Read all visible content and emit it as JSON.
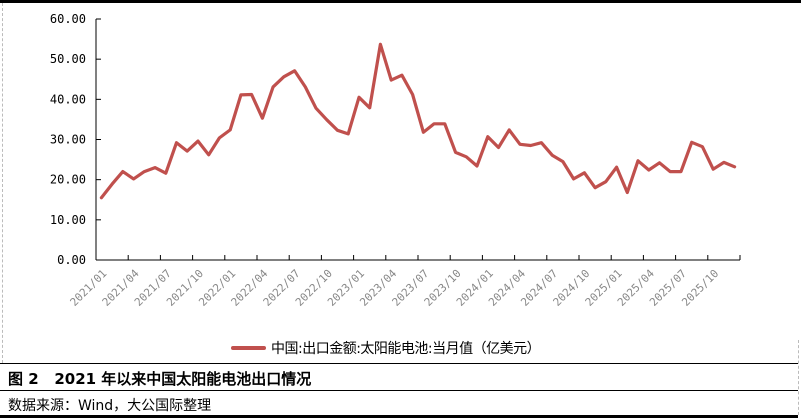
{
  "figure": {
    "title": "图 2   2021 年以来中国太阳能电池出口情况",
    "source": "数据来源：Wind，大公国际整理"
  },
  "colors": {
    "series": "#C0504D",
    "axis": "#000000",
    "tick_label_x": "#888888"
  },
  "chart_data": {
    "type": "line",
    "title": "2021 年以来中国太阳能电池出口情况",
    "xlabel": "",
    "ylabel": "",
    "ylim": [
      0,
      60
    ],
    "yticks": [
      "0.00",
      "10.00",
      "20.00",
      "30.00",
      "40.00",
      "50.00",
      "60.00"
    ],
    "grid": false,
    "legend_position": "bottom",
    "x_tick_labels": [
      "2021/01",
      "2021/04",
      "2021/07",
      "2021/10",
      "2022/01",
      "2022/04",
      "2022/07",
      "2022/10",
      "2023/01",
      "2023/04",
      "2023/07",
      "2023/10",
      "2024/01",
      "2024/04",
      "2024/07",
      "2024/10",
      "2025/01",
      "2025/04",
      "2025/07",
      "2025/10"
    ],
    "categories": [
      "2021/01",
      "2021/02",
      "2021/03",
      "2021/04",
      "2021/05",
      "2021/06",
      "2021/07",
      "2021/08",
      "2021/09",
      "2021/10",
      "2021/11",
      "2021/12",
      "2022/01",
      "2022/02",
      "2022/03",
      "2022/04",
      "2022/05",
      "2022/06",
      "2022/07",
      "2022/08",
      "2022/09",
      "2022/10",
      "2022/11",
      "2022/12",
      "2023/01",
      "2023/02",
      "2023/03",
      "2023/04",
      "2023/05",
      "2023/06",
      "2023/07",
      "2023/08",
      "2023/09",
      "2023/10",
      "2023/11",
      "2023/12",
      "2024/01",
      "2024/02",
      "2024/03",
      "2024/04",
      "2024/05",
      "2024/06",
      "2024/07",
      "2024/08",
      "2024/09",
      "2024/10",
      "2024/11",
      "2024/12",
      "2025/01",
      "2025/02",
      "2025/03",
      "2025/04",
      "2025/05",
      "2025/06",
      "2025/07",
      "2025/08",
      "2025/09",
      "2025/10",
      "2025/11",
      "2025/12"
    ],
    "series": [
      {
        "name": "中国:出口金额:太阳能电池:当月值（亿美元）",
        "color": "#C0504D",
        "values": [
          15.5,
          18.9,
          22.0,
          20.2,
          22.0,
          23.0,
          21.6,
          29.2,
          27.1,
          29.6,
          26.2,
          30.4,
          32.4,
          41.1,
          41.2,
          35.3,
          43.1,
          45.6,
          47.1,
          43.1,
          37.8,
          34.9,
          32.3,
          31.4,
          40.5,
          37.9,
          53.7,
          44.8,
          46.0,
          41.2,
          31.8,
          33.9,
          33.9,
          26.8,
          25.7,
          23.4,
          30.7,
          28.0,
          32.4,
          28.8,
          28.5,
          29.2,
          26.1,
          24.5,
          20.2,
          21.7,
          18.0,
          19.5,
          23.1,
          16.8,
          24.7,
          22.4,
          24.2,
          22.0,
          22.0,
          29.3,
          28.2,
          22.6,
          24.3,
          23.2
        ]
      }
    ]
  }
}
